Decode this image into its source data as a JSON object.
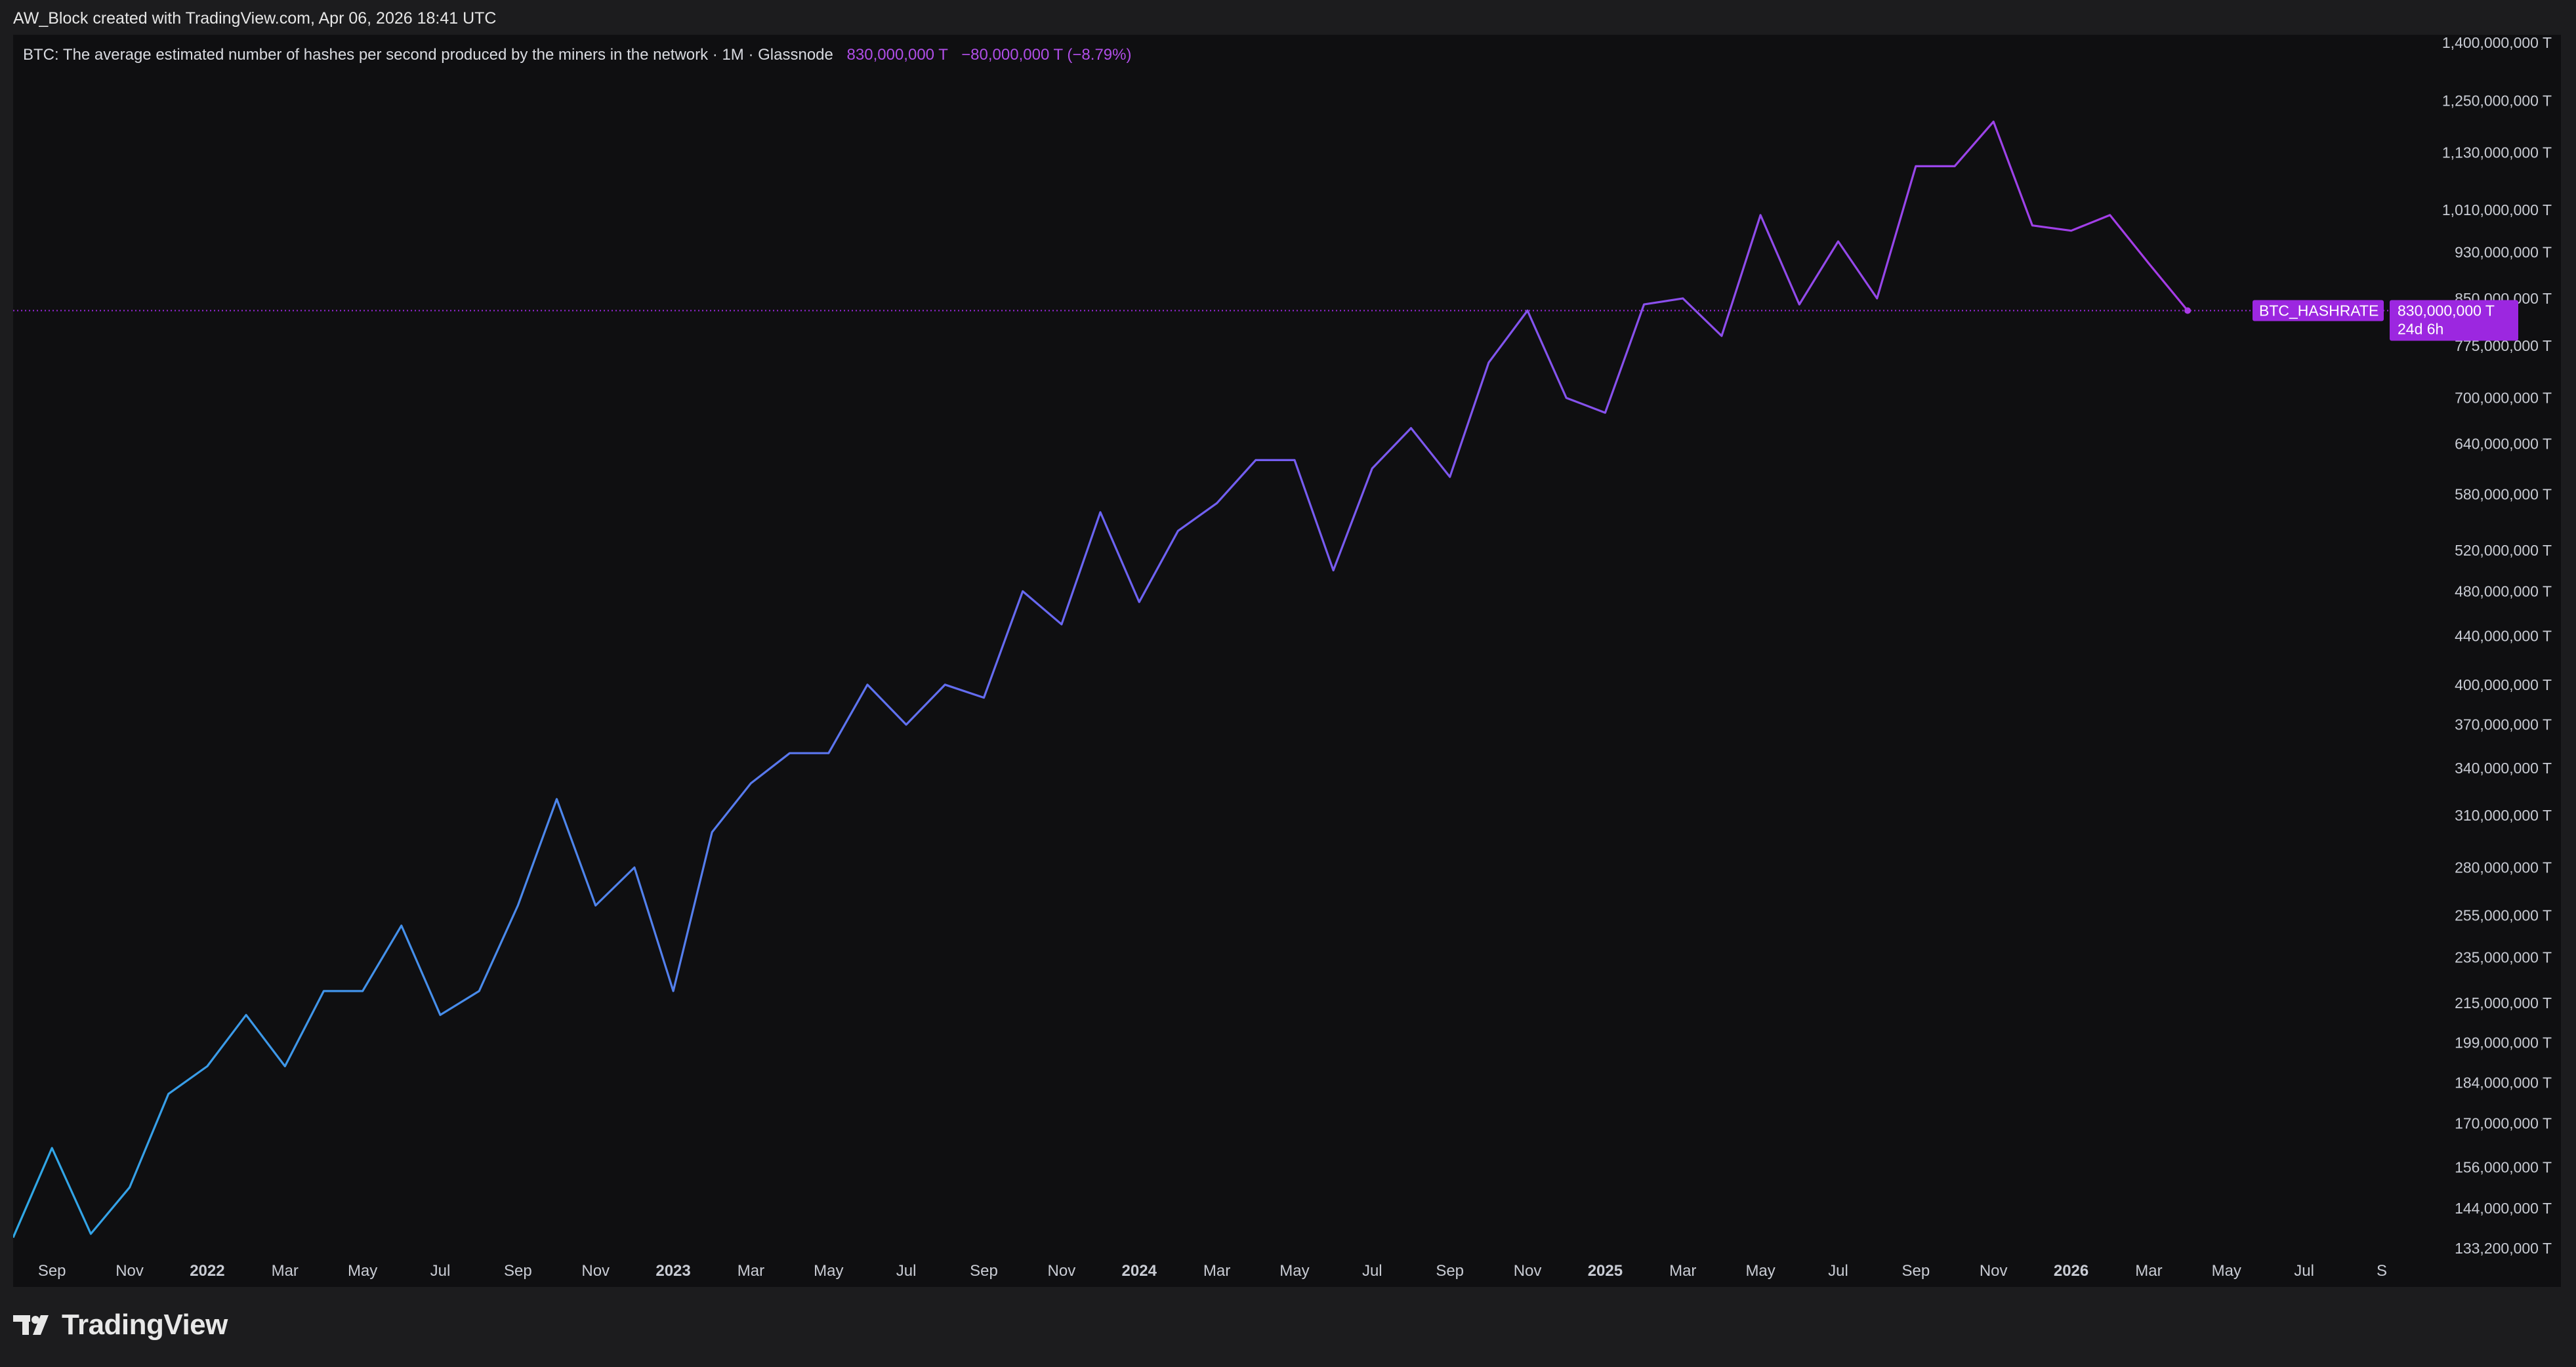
{
  "header": {
    "created_by": "AW_Block created with TradingView.com, Apr 06, 2026 18:41 UTC"
  },
  "legend": {
    "title": "BTC: The average estimated number of hashes per second produced by the miners in the network · 1M · Glassnode",
    "last_value": "830,000,000 T",
    "change": "−80,000,000 T (−8.79%)"
  },
  "footer": {
    "brand": "TradingView",
    "logo_icon": "tradingview-logo-icon"
  },
  "colors": {
    "line_start": "#2fa8e6",
    "line_mid": "#6c63f2",
    "line_end": "#a93ae6",
    "accent": "#9c27e0",
    "background": "#0f0f11",
    "axis_text": "#c9ccd4"
  },
  "chart_data": {
    "type": "line",
    "series": [
      {
        "name": "BTC_HASHRATE",
        "x": [
          "2021-08",
          "2021-09",
          "2021-10",
          "2021-11",
          "2021-12",
          "2022-01",
          "2022-02",
          "2022-03",
          "2022-04",
          "2022-05",
          "2022-06",
          "2022-07",
          "2022-08",
          "2022-09",
          "2022-10",
          "2022-11",
          "2022-12",
          "2023-01",
          "2023-02",
          "2023-03",
          "2023-04",
          "2023-05",
          "2023-06",
          "2023-07",
          "2023-08",
          "2023-09",
          "2023-10",
          "2023-11",
          "2023-12",
          "2024-01",
          "2024-02",
          "2024-03",
          "2024-04",
          "2024-05",
          "2024-06",
          "2024-07",
          "2024-08",
          "2024-09",
          "2024-10",
          "2024-11",
          "2024-12",
          "2025-01",
          "2025-02",
          "2025-03",
          "2025-04",
          "2025-05",
          "2025-06",
          "2025-07",
          "2025-08",
          "2025-09",
          "2025-10",
          "2025-11",
          "2025-12",
          "2026-01",
          "2026-02",
          "2026-03",
          "2026-04"
        ],
        "values": [
          136000000,
          162000000,
          137000000,
          150000000,
          180000000,
          190000000,
          210000000,
          190000000,
          220000000,
          220000000,
          250000000,
          210000000,
          220000000,
          260000000,
          320000000,
          260000000,
          280000000,
          220000000,
          300000000,
          330000000,
          350000000,
          350000000,
          400000000,
          370000000,
          400000000,
          390000000,
          480000000,
          450000000,
          560000000,
          470000000,
          540000000,
          570000000,
          620000000,
          620000000,
          500000000,
          610000000,
          660000000,
          600000000,
          750000000,
          830000000,
          700000000,
          680000000,
          840000000,
          850000000,
          790000000,
          1000000000,
          840000000,
          950000000,
          850000000,
          1100000000,
          1100000000,
          1200000000,
          980000000,
          970000000,
          1000000000,
          910000000,
          830000000
        ]
      }
    ],
    "x_ticks": [
      {
        "label": "Sep",
        "x": "2021-09"
      },
      {
        "label": "Nov",
        "x": "2021-11"
      },
      {
        "label": "2022",
        "x": "2022-01",
        "bold": true
      },
      {
        "label": "Mar",
        "x": "2022-03"
      },
      {
        "label": "May",
        "x": "2022-05"
      },
      {
        "label": "Jul",
        "x": "2022-07"
      },
      {
        "label": "Sep",
        "x": "2022-09"
      },
      {
        "label": "Nov",
        "x": "2022-11"
      },
      {
        "label": "2023",
        "x": "2023-01",
        "bold": true
      },
      {
        "label": "Mar",
        "x": "2023-03"
      },
      {
        "label": "May",
        "x": "2023-05"
      },
      {
        "label": "Jul",
        "x": "2023-07"
      },
      {
        "label": "Sep",
        "x": "2023-09"
      },
      {
        "label": "Nov",
        "x": "2023-11"
      },
      {
        "label": "2024",
        "x": "2024-01",
        "bold": true
      },
      {
        "label": "Mar",
        "x": "2024-03"
      },
      {
        "label": "May",
        "x": "2024-05"
      },
      {
        "label": "Jul",
        "x": "2024-07"
      },
      {
        "label": "Sep",
        "x": "2024-09"
      },
      {
        "label": "Nov",
        "x": "2024-11"
      },
      {
        "label": "2025",
        "x": "2025-01",
        "bold": true
      },
      {
        "label": "Mar",
        "x": "2025-03"
      },
      {
        "label": "May",
        "x": "2025-05"
      },
      {
        "label": "Jul",
        "x": "2025-07"
      },
      {
        "label": "Sep",
        "x": "2025-09"
      },
      {
        "label": "Nov",
        "x": "2025-11"
      },
      {
        "label": "2026",
        "x": "2026-01",
        "bold": true
      },
      {
        "label": "Mar",
        "x": "2026-03"
      },
      {
        "label": "May",
        "x": "2026-05"
      },
      {
        "label": "Jul",
        "x": "2026-07"
      },
      {
        "label": "S",
        "x": "2026-09"
      }
    ],
    "y_ticks": [
      {
        "label": "1,400,000,000 T",
        "value": 1400000000
      },
      {
        "label": "1,250,000,000 T",
        "value": 1250000000
      },
      {
        "label": "1,130,000,000 T",
        "value": 1130000000
      },
      {
        "label": "1,010,000,000 T",
        "value": 1010000000
      },
      {
        "label": "930,000,000 T",
        "value": 930000000
      },
      {
        "label": "850,000,000 T",
        "value": 850000000
      },
      {
        "label": "775,000,000 T",
        "value": 775000000
      },
      {
        "label": "700,000,000 T",
        "value": 700000000
      },
      {
        "label": "640,000,000 T",
        "value": 640000000
      },
      {
        "label": "580,000,000 T",
        "value": 580000000
      },
      {
        "label": "520,000,000 T",
        "value": 520000000
      },
      {
        "label": "480,000,000 T",
        "value": 480000000
      },
      {
        "label": "440,000,000 T",
        "value": 440000000
      },
      {
        "label": "400,000,000 T",
        "value": 400000000
      },
      {
        "label": "370,000,000 T",
        "value": 370000000
      },
      {
        "label": "340,000,000 T",
        "value": 340000000
      },
      {
        "label": "310,000,000 T",
        "value": 310000000
      },
      {
        "label": "280,000,000 T",
        "value": 280000000
      },
      {
        "label": "255,000,000 T",
        "value": 255000000
      },
      {
        "label": "235,000,000 T",
        "value": 235000000
      },
      {
        "label": "215,000,000 T",
        "value": 215000000
      },
      {
        "label": "199,000,000 T",
        "value": 199000000
      },
      {
        "label": "184,000,000 T",
        "value": 184000000
      },
      {
        "label": "170,000,000 T",
        "value": 170000000
      },
      {
        "label": "156,000,000 T",
        "value": 156000000
      },
      {
        "label": "144,000,000 T",
        "value": 144000000
      },
      {
        "label": "133,200,000 T",
        "value": 133200000
      }
    ],
    "y_scale": "log",
    "ylim": [
      133200000,
      1400000000
    ],
    "xlim": [
      "2021-08",
      "2026-09"
    ],
    "grid": false,
    "last_price_line": {
      "value": 830000000
    },
    "price_label": {
      "series_name": "BTC_HASHRATE",
      "value_text": "830,000,000 T",
      "countdown_text": "24d 6h"
    }
  }
}
